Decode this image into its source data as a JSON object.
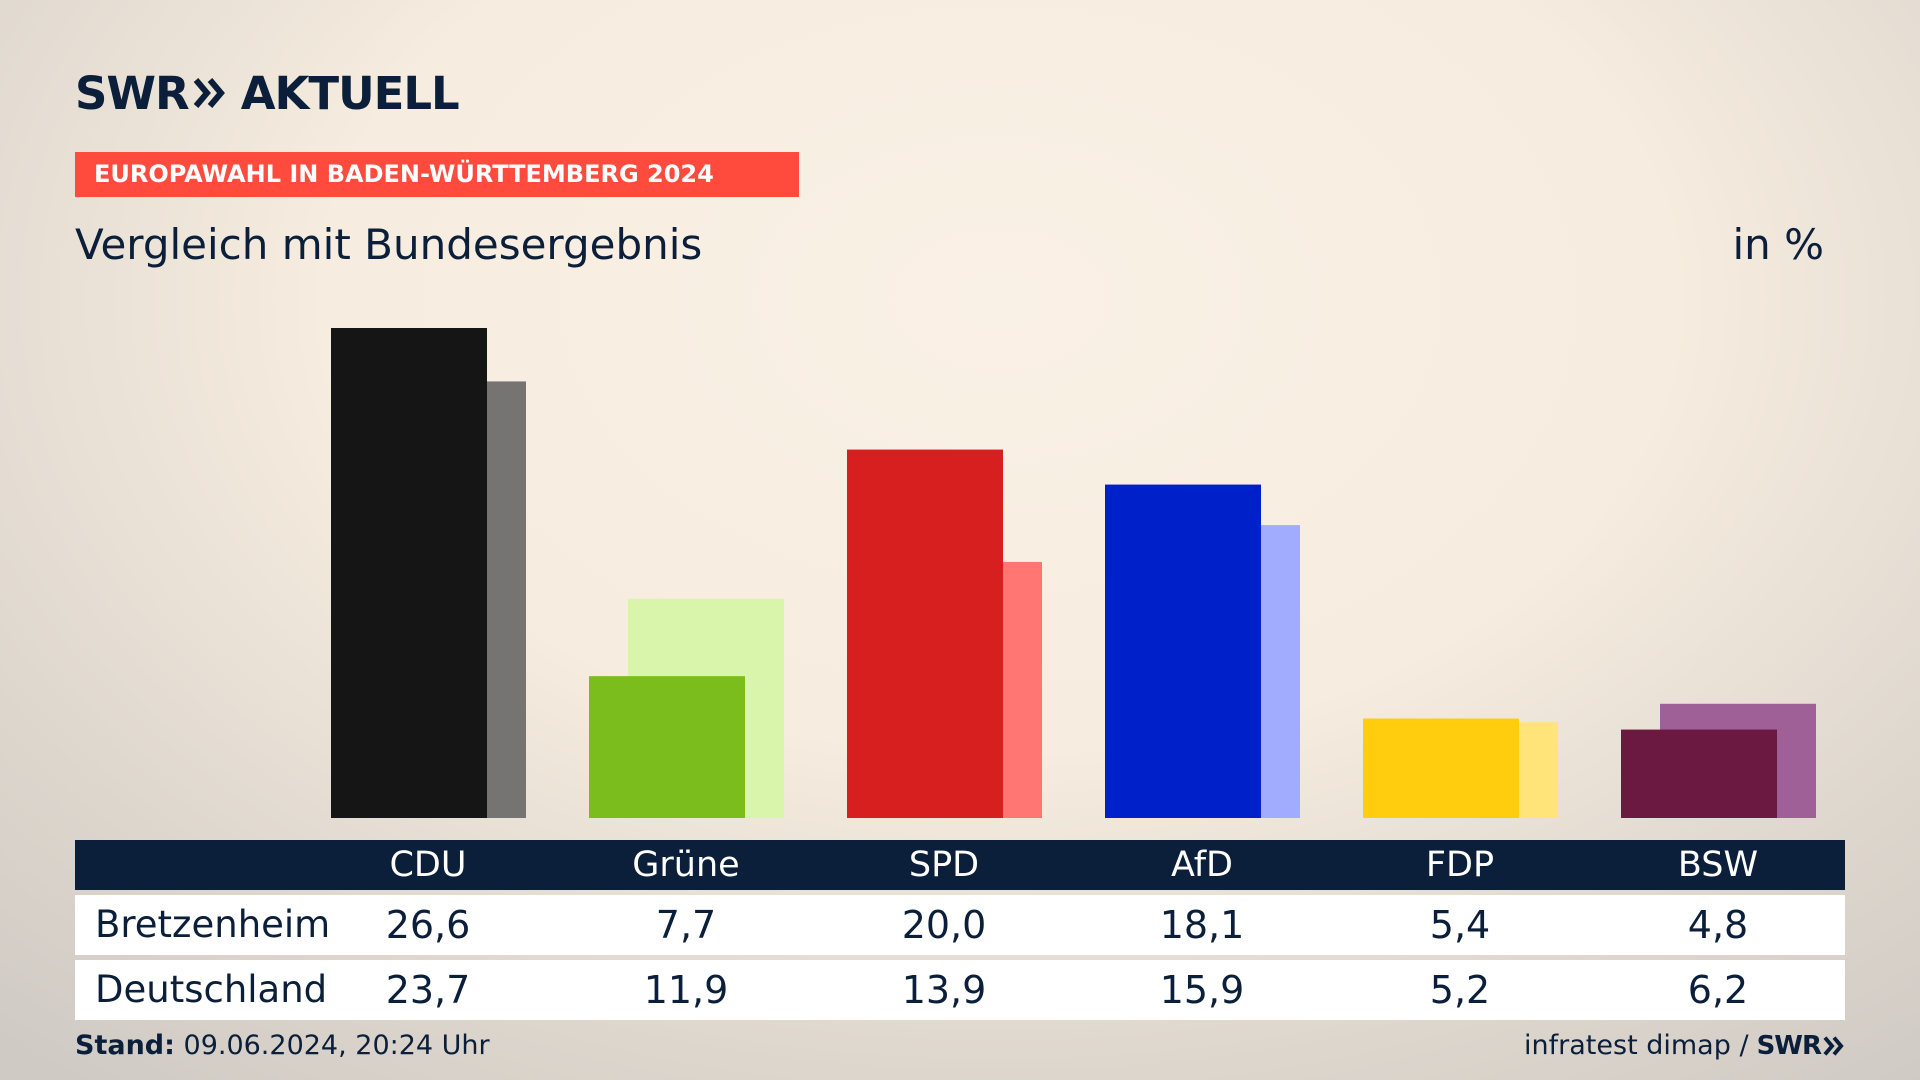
{
  "brand": {
    "word1": "SWR",
    "word2": "AKTUELL",
    "source_brand": "SWR"
  },
  "header": {
    "badge": "EUROPAWAHL IN BADEN-WÜRTTEMBERG 2024",
    "subtitle": "Vergleich mit Bundesergebnis",
    "unit": "in %"
  },
  "table": {
    "rows": [
      {
        "label": "Bretzenheim"
      },
      {
        "label": "Deutschland"
      }
    ]
  },
  "footer": {
    "stand_label": "Stand:",
    "stand_value": "09.06.2024, 20:24 Uhr",
    "source": "infratest dimap /"
  },
  "colors": {
    "navy": "#0b1f3a",
    "accent": "#ff4b3e"
  },
  "chart_data": {
    "type": "bar",
    "ylim": [
      0,
      26.6
    ],
    "categories": [
      "CDU",
      "Grüne",
      "SPD",
      "AfD",
      "FDP",
      "BSW"
    ],
    "series": [
      {
        "name": "Bretzenheim",
        "values": [
          26.6,
          7.7,
          20.0,
          18.1,
          5.4,
          4.8
        ],
        "labels": [
          "26,6",
          "7,7",
          "20,0",
          "18,1",
          "5,4",
          "4,8"
        ]
      },
      {
        "name": "Deutschland",
        "values": [
          23.7,
          11.9,
          13.9,
          15.9,
          5.2,
          6.2
        ],
        "labels": [
          "23,7",
          "11,9",
          "13,9",
          "15,9",
          "5,2",
          "6,2"
        ]
      }
    ],
    "colors_primary": [
      "#151515",
      "#7abd1d",
      "#d81f20",
      "#0021c9",
      "#ffcd0e",
      "#6b1941"
    ],
    "colors_secondary": [
      "#767472",
      "#d8f5ab",
      "#ff7672",
      "#a2acff",
      "#ffe47a",
      "#9f6097"
    ]
  }
}
